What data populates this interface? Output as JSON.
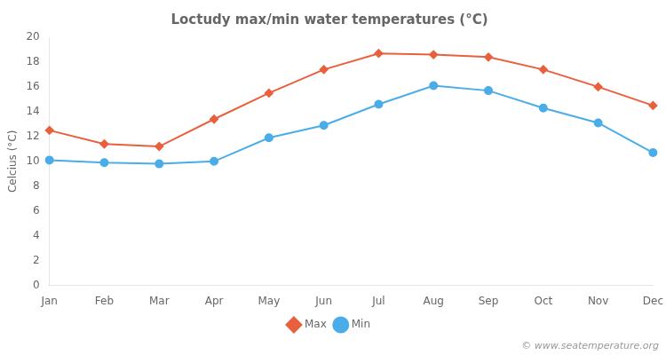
{
  "chart_data": {
    "type": "line",
    "title": "Loctudy max/min water temperatures (°C)",
    "y_label": "Celcius (°C)",
    "categories": [
      "Jan",
      "Feb",
      "Mar",
      "Apr",
      "May",
      "Jun",
      "Jul",
      "Aug",
      "Sep",
      "Oct",
      "Nov",
      "Dec"
    ],
    "series": [
      {
        "name": "Max",
        "color": "#e8603c",
        "marker": "diamond",
        "line_style": "solid",
        "values": [
          12.5,
          11.4,
          11.2,
          13.4,
          15.5,
          17.4,
          18.7,
          18.6,
          18.4,
          17.4,
          16.0,
          14.5
        ]
      },
      {
        "name": "Min",
        "color": "#4aace8",
        "marker": "circle",
        "line_style": "solid",
        "values": [
          10.1,
          9.9,
          9.8,
          10.0,
          11.9,
          12.9,
          14.6,
          16.1,
          15.7,
          14.3,
          13.1,
          10.7
        ]
      }
    ],
    "ylim": [
      0,
      20
    ],
    "yticks": [
      0,
      2,
      4,
      6,
      8,
      10,
      12,
      14,
      16,
      18,
      20
    ],
    "grid": false,
    "legend": "bottom",
    "annotations": [
      "© www.seatemperature.org"
    ]
  }
}
